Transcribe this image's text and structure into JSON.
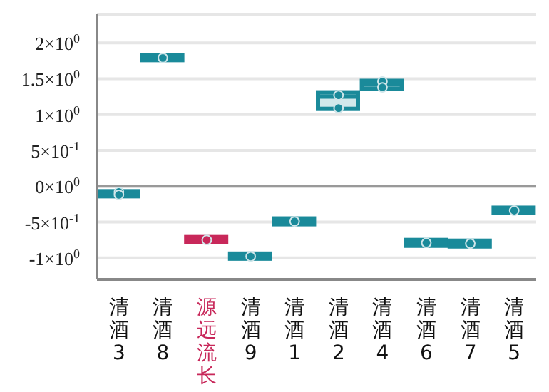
{
  "chart_data": {
    "type": "box",
    "categories": [
      "清酒3",
      "清酒8",
      "源远流长",
      "清酒9",
      "清酒1",
      "清酒2",
      "清酒4",
      "清酒6",
      "清酒7",
      "清酒5"
    ],
    "colors": [
      "#1a8a9a",
      "#1a8a9a",
      "#c8285a",
      "#1a8a9a",
      "#1a8a9a",
      "#1a8a9a",
      "#1a8a9a",
      "#1a8a9a",
      "#1a8a9a",
      "#1a8a9a"
    ],
    "boxes": [
      {
        "low": -0.14,
        "q1": -0.14,
        "median": -0.1,
        "q3": -0.07,
        "high": -0.07
      },
      {
        "low": 1.76,
        "q1": 1.76,
        "median": 1.79,
        "q3": 1.83,
        "high": 1.83
      },
      {
        "low": -0.78,
        "q1": -0.78,
        "median": -0.75,
        "q3": -0.71,
        "high": -0.71
      },
      {
        "low": -1.01,
        "q1": -1.01,
        "median": -0.98,
        "q3": -0.94,
        "high": -0.94
      },
      {
        "low": -0.53,
        "q1": -0.53,
        "median": -0.49,
        "q3": -0.45,
        "high": -0.45
      },
      {
        "low": 1.08,
        "q1": 1.08,
        "median": 1.25,
        "q3": 1.31,
        "high": 1.31
      },
      {
        "low": 1.36,
        "q1": 1.36,
        "median": 1.42,
        "q3": 1.47,
        "high": 1.47
      },
      {
        "low": -0.83,
        "q1": -0.83,
        "median": -0.79,
        "q3": -0.75,
        "high": -0.75
      },
      {
        "low": -0.84,
        "q1": -0.84,
        "median": -0.8,
        "q3": -0.76,
        "high": -0.76
      },
      {
        "low": -0.37,
        "q1": -0.37,
        "median": -0.34,
        "q3": -0.3,
        "high": -0.3
      }
    ],
    "series": [
      {
        "type": "scatter",
        "x": [
          "清酒3",
          "清酒3",
          "清酒8",
          "源远流长",
          "清酒9",
          "清酒1",
          "清酒2",
          "清酒2",
          "清酒4",
          "清酒4",
          "清酒6",
          "清酒7",
          "清酒5"
        ],
        "values": [
          -0.08,
          -0.12,
          1.79,
          -0.75,
          -0.98,
          -0.49,
          1.27,
          1.09,
          1.46,
          1.38,
          -0.79,
          -0.8,
          -0.34
        ],
        "colors": [
          "#1a8a9a",
          "#1a8a9a",
          "#1a8a9a",
          "#c8285a",
          "#1a8a9a",
          "#1a8a9a",
          "#1a8a9a",
          "#1a8a9a",
          "#1a8a9a",
          "#1a8a9a",
          "#1a8a9a",
          "#1a8a9a",
          "#1a8a9a"
        ]
      }
    ],
    "ylim": [
      -1.3,
      2.4
    ],
    "yticks": [
      {
        "value": 2,
        "label": "2×10$^{0}$"
      },
      {
        "value": 1.5,
        "label": "1.5×10$^{0}$"
      },
      {
        "value": 1,
        "label": "1×10$^{0}$"
      },
      {
        "value": 0.5,
        "label": "5×10$^{-1}$"
      },
      {
        "value": 0,
        "label": "0×10$^{0}$"
      },
      {
        "value": -0.5,
        "label": "-5×10$^{-1}$"
      },
      {
        "value": -1,
        "label": "-1×10$^{0}$"
      }
    ],
    "ref_lines": [
      {
        "axis": "y",
        "value": 0,
        "color": "#999999"
      }
    ],
    "grid": "y",
    "legend": false,
    "marker": "circle"
  }
}
